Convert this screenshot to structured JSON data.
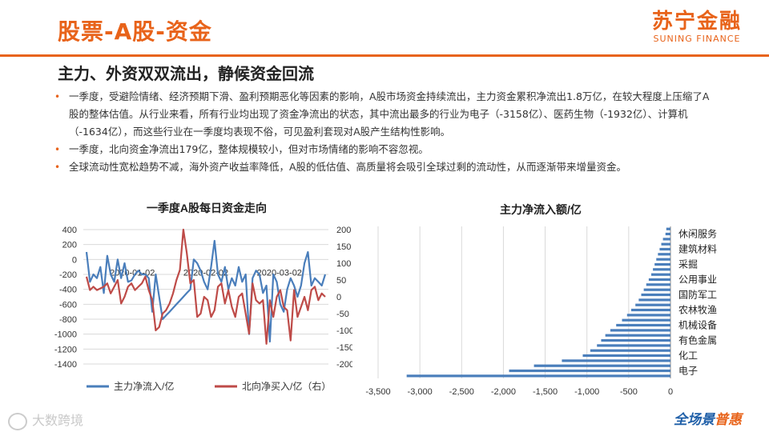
{
  "header": {
    "title": "股票-A股-资金",
    "logo_cn": "苏宁金融",
    "logo_en": "SUNING FINANCE",
    "accent_color": "#E8631A"
  },
  "subtitle": "主力、外资双双流出，静候资金回流",
  "bullets": [
    "一季度，受避险情绪、经济预期下滑、盈利预期恶化等因素的影响，A股市场资金持续流出，主力资金累积净流出1.8万亿，在较大程度上压缩了A股的整体估值。从行业来看，所有行业均出现了资金净流出的状态，其中流出最多的行业为电子（-3158亿）、医药生物（-1932亿）、计算机（-1634亿），而这些行业在一季度均表现不俗，可见盈利套现对A股产生结构性影响。",
    "一季度，北向资金净流出179亿，整体规模较小，但对市场情绪的影响不容忽视。",
    "全球流动性宽松趋势不减，海外资产收益率降低，A股的低估值、高质量将会吸引全球过剩的流动性，从而逐渐带来增量资金。"
  ],
  "chart_data": [
    {
      "type": "line",
      "title": "一季度A股每日资金走向",
      "x_ticks": [
        "2020-01-02",
        "2020-02-02",
        "2020-03-02"
      ],
      "y_left": {
        "min": -1400,
        "max": 400,
        "ticks": [
          400,
          200,
          0,
          -200,
          -400,
          -600,
          -800,
          -1000,
          -1200,
          -1400
        ]
      },
      "y_right": {
        "min": -200,
        "max": 200,
        "ticks": [
          200,
          150,
          100,
          50,
          0,
          -50,
          -100,
          -150,
          -200
        ]
      },
      "grid": true,
      "legend_position": "bottom",
      "series": [
        {
          "name": "主力净流入/亿",
          "axis": "left",
          "color": "#4A7EBB",
          "values": [
            100,
            -300,
            -200,
            -250,
            -100,
            -450,
            50,
            -200,
            -300,
            0,
            -250,
            -50,
            -300,
            -280,
            -200,
            -150,
            -200,
            -200,
            -250,
            -700,
            -200,
            -500,
            -800,
            -750,
            -700,
            -650,
            -600,
            -550,
            -500,
            -450,
            -400,
            0,
            -50,
            -150,
            -300,
            -400,
            -100,
            250,
            -200,
            -300,
            -100,
            -400,
            -250,
            -350,
            -100,
            -300,
            -200,
            -1000,
            -250,
            -150,
            -200,
            -450,
            -350,
            -1100,
            -200,
            -300,
            -600,
            -700,
            -400,
            -250,
            -350,
            -500,
            -350,
            -50,
            100,
            -350,
            -250,
            -300,
            -350,
            -200
          ]
        },
        {
          "name": "北向净买入/亿（右）",
          "axis": "right",
          "color": "#BE4B48",
          "values": [
            60,
            20,
            30,
            20,
            25,
            30,
            40,
            10,
            30,
            50,
            -20,
            0,
            30,
            40,
            20,
            30,
            40,
            60,
            20,
            -10,
            -100,
            -90,
            -50,
            -40,
            -20,
            10,
            50,
            80,
            200,
            130,
            40,
            50,
            -60,
            -50,
            0,
            -10,
            -60,
            -40,
            30,
            40,
            -20,
            20,
            -30,
            -60,
            0,
            10,
            -50,
            -110,
            40,
            -10,
            -20,
            -10,
            -140,
            -10,
            -60,
            0,
            20,
            -30,
            -40,
            -130,
            20,
            -60,
            -30,
            0,
            -40,
            20,
            30,
            -10,
            10,
            0
          ]
        }
      ]
    },
    {
      "type": "bar",
      "orientation": "horizontal",
      "title": "主力净流入额/亿",
      "bar_color": "#4A7EBB",
      "xlim": [
        -3500,
        0
      ],
      "x_ticks": [
        "-3,500",
        "-3,000",
        "-2,500",
        "-2,000",
        "-1,500",
        "-1,000",
        "-500",
        "0"
      ],
      "labeled_categories": [
        "休闲服务",
        "建筑材料",
        "采掘",
        "公用事业",
        "国防军工",
        "农林牧渔",
        "机械设备",
        "有色金属",
        "化工",
        "电子"
      ],
      "values": [
        -50,
        -60,
        -90,
        -110,
        -130,
        -150,
        -170,
        -190,
        -210,
        -230,
        -260,
        -290,
        -320,
        -350,
        -380,
        -420,
        -470,
        -520,
        -580,
        -650,
        -720,
        -780,
        -830,
        -880,
        -960,
        -1050,
        -1300,
        -1634,
        -1932,
        -3158
      ]
    }
  ],
  "watermark": "大数跨境",
  "slogan_main": "全场景",
  "slogan_accent": "普惠"
}
